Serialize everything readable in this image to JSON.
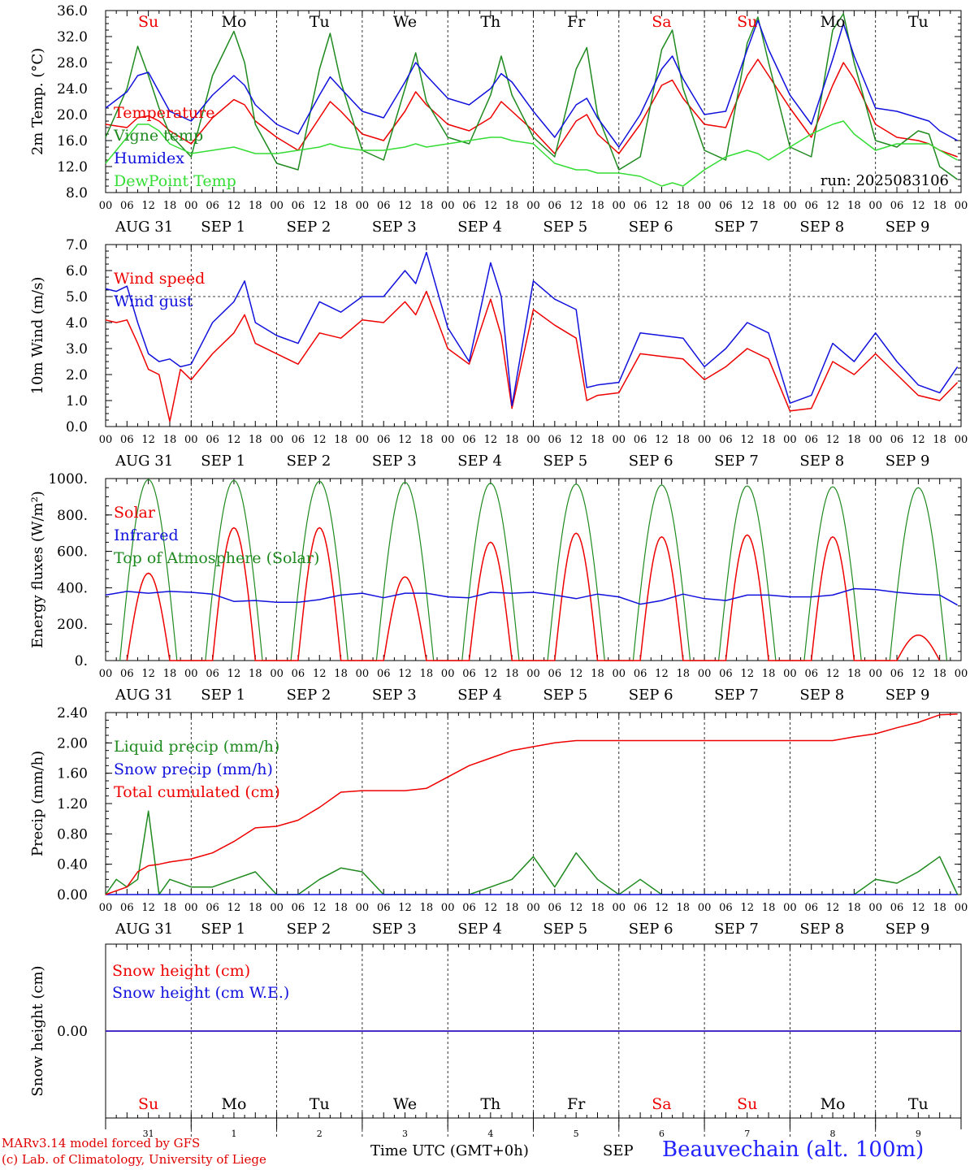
{
  "colors": {
    "red": "#ee0000",
    "green": "#1f8a1f",
    "lightgreen": "#33dd33",
    "blue": "#1111dd",
    "black": "#000000",
    "weekend": "#ee0000"
  },
  "day_names": [
    "Su",
    "Mo",
    "Tu",
    "We",
    "Th",
    "Fr",
    "Sa",
    "Su",
    "Mo",
    "Tu"
  ],
  "weekend_flags": [
    true,
    false,
    false,
    false,
    false,
    false,
    true,
    true,
    false,
    false
  ],
  "date_labels": [
    "AUG 31",
    "SEP  1",
    "SEP  2",
    "SEP  3",
    "SEP  4",
    "SEP  5",
    "SEP  6",
    "SEP  7",
    "SEP  8",
    "SEP  9"
  ],
  "hour_ticks": [
    "00",
    "06",
    "12",
    "18"
  ],
  "hour_end": "00",
  "bottom_day_numbers": [
    "31",
    "1",
    "2",
    "3",
    "4",
    "5",
    "6",
    "7",
    "8",
    "9"
  ],
  "footer": {
    "model": "MARv3.14 model forced by GFS",
    "copyright": "(c) Lab. of Climatology, University of Liege",
    "time_label": "Time UTC (GMT+0h)",
    "month": "SEP",
    "station": "Beauvechain (alt. 100m)"
  },
  "chart_data": [
    {
      "type": "line",
      "ylabel": "2m Temp. (°C)",
      "ylim": [
        8.0,
        36.0
      ],
      "yticks": [
        "8.0",
        "12.0",
        "16.0",
        "20.0",
        "24.0",
        "28.0",
        "32.0",
        "36.0"
      ],
      "annotation": "run: 2025083106",
      "x_hours": [
        0,
        6,
        9,
        12,
        15,
        18,
        24,
        30,
        36,
        39,
        42,
        48,
        54,
        60,
        63,
        66,
        72,
        78,
        84,
        87,
        90,
        96,
        102,
        108,
        111,
        114,
        120,
        126,
        132,
        135,
        138,
        144,
        150,
        156,
        159,
        162,
        168,
        174,
        180,
        183,
        186,
        192,
        198,
        204,
        207,
        210,
        216,
        222,
        228,
        231,
        234,
        239
      ],
      "series": [
        {
          "name": "Temperature",
          "color": "red",
          "values": [
            18.5,
            18.0,
            19.5,
            19.8,
            19.0,
            17.5,
            15.5,
            19.5,
            22.3,
            21.5,
            19.0,
            16.5,
            14.5,
            19.5,
            22.0,
            20.5,
            17.0,
            16.0,
            20.5,
            23.5,
            21.5,
            18.5,
            17.5,
            19.5,
            22.0,
            20.5,
            17.5,
            14.0,
            19.0,
            20.0,
            17.0,
            14.0,
            18.5,
            24.5,
            25.3,
            22.5,
            18.5,
            18.0,
            26.0,
            28.5,
            26.0,
            21.0,
            16.5,
            24.5,
            28.0,
            25.5,
            18.5,
            16.5,
            16.0,
            15.5,
            14.5,
            13.5
          ]
        },
        {
          "name": "Vigne temp",
          "color": "green",
          "values": [
            16.5,
            24.0,
            30.5,
            26.0,
            21.0,
            17.0,
            13.5,
            26.0,
            32.8,
            28.0,
            18.5,
            12.5,
            11.5,
            27.0,
            32.5,
            25.0,
            14.5,
            13.0,
            24.0,
            29.5,
            22.0,
            16.5,
            15.5,
            23.0,
            29.0,
            23.0,
            16.5,
            13.5,
            27.0,
            30.3,
            20.0,
            11.5,
            13.5,
            30.0,
            33.0,
            24.0,
            14.5,
            13.0,
            31.0,
            35.0,
            28.0,
            15.0,
            13.5,
            33.0,
            35.5,
            28.0,
            16.0,
            15.0,
            17.5,
            17.0,
            12.0,
            10.0
          ]
        },
        {
          "name": "Humidex",
          "color": "blue",
          "values": [
            21.0,
            23.5,
            26.0,
            26.5,
            23.5,
            20.5,
            19.0,
            23.0,
            26.0,
            24.5,
            21.5,
            18.5,
            17.0,
            23.0,
            25.8,
            24.0,
            20.5,
            19.5,
            25.0,
            28.0,
            26.0,
            22.5,
            21.5,
            24.0,
            26.3,
            25.0,
            20.5,
            16.5,
            21.5,
            22.5,
            19.5,
            15.0,
            20.0,
            27.0,
            29.0,
            25.5,
            20.0,
            20.5,
            30.0,
            34.5,
            30.0,
            23.0,
            18.5,
            28.5,
            34.0,
            29.0,
            21.0,
            20.5,
            19.5,
            19.0,
            17.5,
            16.0
          ]
        },
        {
          "name": "DewPoint Temp",
          "color": "lightgreen",
          "values": [
            12.5,
            16.5,
            18.5,
            18.5,
            17.5,
            15.5,
            14.0,
            14.5,
            15.0,
            14.5,
            14.0,
            14.0,
            14.5,
            15.0,
            15.5,
            15.0,
            14.5,
            14.5,
            15.0,
            15.5,
            15.0,
            15.5,
            16.0,
            16.5,
            16.5,
            16.0,
            15.5,
            12.5,
            11.5,
            11.5,
            11.0,
            11.0,
            10.5,
            9.0,
            9.5,
            9.0,
            11.5,
            13.5,
            14.5,
            14.0,
            13.0,
            15.0,
            17.0,
            18.5,
            19.0,
            17.0,
            14.5,
            15.5,
            15.5,
            15.5,
            14.5,
            13.0
          ]
        }
      ]
    },
    {
      "type": "line",
      "ylabel": "10m Wind (m/s)",
      "ylim": [
        0.0,
        7.0
      ],
      "yticks": [
        "0.0",
        "1.0",
        "2.0",
        "3.0",
        "4.0",
        "5.0",
        "6.0",
        "7.0"
      ],
      "ref_line": 5.0,
      "x_hours": [
        0,
        3,
        6,
        9,
        12,
        15,
        18,
        21,
        24,
        30,
        36,
        39,
        42,
        48,
        54,
        60,
        66,
        72,
        78,
        84,
        87,
        90,
        96,
        102,
        108,
        111,
        114,
        120,
        126,
        132,
        135,
        138,
        144,
        150,
        156,
        162,
        168,
        174,
        180,
        186,
        192,
        198,
        204,
        210,
        216,
        222,
        228,
        234,
        239
      ],
      "series": [
        {
          "name": "Wind speed",
          "color": "red",
          "values": [
            4.1,
            4.0,
            4.1,
            3.2,
            2.2,
            2.0,
            0.2,
            2.2,
            1.8,
            2.8,
            3.6,
            4.3,
            3.2,
            2.8,
            2.4,
            3.6,
            3.4,
            4.1,
            4.0,
            4.8,
            4.3,
            5.2,
            3.0,
            2.4,
            4.9,
            3.5,
            0.7,
            4.5,
            3.9,
            3.4,
            1.0,
            1.2,
            1.3,
            2.8,
            2.7,
            2.6,
            1.8,
            2.3,
            3.0,
            2.6,
            0.6,
            0.7,
            2.5,
            2.0,
            2.8,
            2.0,
            1.2,
            1.0,
            1.7
          ]
        },
        {
          "name": "Wind gust",
          "color": "blue",
          "values": [
            5.3,
            5.2,
            5.4,
            4.0,
            2.8,
            2.5,
            2.6,
            2.3,
            2.4,
            4.0,
            4.8,
            5.6,
            4.0,
            3.5,
            3.2,
            4.8,
            4.4,
            5.0,
            5.0,
            6.0,
            5.5,
            6.7,
            3.8,
            2.5,
            6.3,
            5.0,
            0.8,
            5.6,
            4.9,
            4.5,
            1.5,
            1.6,
            1.7,
            3.6,
            3.5,
            3.4,
            2.3,
            3.0,
            4.0,
            3.6,
            0.9,
            1.2,
            3.2,
            2.5,
            3.6,
            2.5,
            1.6,
            1.3,
            2.3
          ]
        }
      ]
    },
    {
      "type": "line",
      "ylabel": "Energy fluxes (W/m²)",
      "ylim": [
        0,
        1000
      ],
      "yticks": [
        "0.",
        "200.",
        "400.",
        "600.",
        "800.",
        "1000."
      ],
      "solar_peaks": [
        480,
        730,
        730,
        460,
        650,
        700,
        680,
        690,
        680,
        140
      ],
      "x_hours": [
        0,
        6,
        12,
        18,
        24,
        30,
        36,
        42,
        48,
        54,
        60,
        66,
        72,
        78,
        84,
        90,
        96,
        102,
        108,
        114,
        120,
        126,
        132,
        138,
        144,
        150,
        156,
        162,
        168,
        174,
        180,
        186,
        192,
        198,
        204,
        210,
        216,
        222,
        228,
        234,
        239
      ],
      "series": [
        {
          "name": "Solar",
          "color": "red"
        },
        {
          "name": "Infrared",
          "color": "blue",
          "values": [
            360,
            380,
            370,
            380,
            375,
            365,
            325,
            330,
            320,
            320,
            335,
            360,
            370,
            345,
            370,
            370,
            350,
            345,
            375,
            370,
            375,
            360,
            340,
            365,
            350,
            310,
            330,
            365,
            340,
            330,
            360,
            360,
            350,
            350,
            360,
            395,
            390,
            375,
            365,
            360,
            305
          ]
        },
        {
          "name": "Top of Atmosphere (Solar)",
          "color": "green"
        }
      ]
    },
    {
      "type": "line",
      "ylabel": "Precip (mm/h)",
      "ylim": [
        0.0,
        2.4
      ],
      "yticks": [
        "0.00",
        "0.40",
        "0.80",
        "1.20",
        "1.60",
        "2.00",
        "2.40"
      ],
      "x_hours": [
        0,
        3,
        6,
        9,
        12,
        15,
        18,
        24,
        30,
        36,
        42,
        48,
        54,
        60,
        66,
        72,
        78,
        84,
        90,
        96,
        102,
        108,
        114,
        120,
        126,
        132,
        138,
        144,
        150,
        156,
        162,
        168,
        174,
        180,
        186,
        192,
        198,
        204,
        210,
        216,
        222,
        228,
        234,
        239
      ],
      "series": [
        {
          "name": "Liquid precip (mm/h)",
          "color": "green",
          "values": [
            0.0,
            0.2,
            0.1,
            0.2,
            1.1,
            0.0,
            0.2,
            0.1,
            0.1,
            0.2,
            0.3,
            0.0,
            0.0,
            0.2,
            0.35,
            0.3,
            0.0,
            0.0,
            0.0,
            0.0,
            0.0,
            0.1,
            0.2,
            0.5,
            0.1,
            0.55,
            0.2,
            0.0,
            0.2,
            0.0,
            0.0,
            0.0,
            0.0,
            0.0,
            0.0,
            0.0,
            0.0,
            0.0,
            0.0,
            0.2,
            0.15,
            0.3,
            0.5,
            0.0
          ]
        },
        {
          "name": "Snow precip (mm/h)",
          "color": "blue",
          "values": [
            0,
            0,
            0,
            0,
            0,
            0,
            0,
            0,
            0,
            0,
            0,
            0,
            0,
            0,
            0,
            0,
            0,
            0,
            0,
            0,
            0,
            0,
            0,
            0,
            0,
            0,
            0,
            0,
            0,
            0,
            0,
            0,
            0,
            0,
            0,
            0,
            0,
            0,
            0,
            0,
            0,
            0,
            0,
            0
          ]
        },
        {
          "name": "Total cumulated (cm)",
          "color": "red",
          "values": [
            0.0,
            0.05,
            0.1,
            0.3,
            0.38,
            0.4,
            0.43,
            0.47,
            0.55,
            0.7,
            0.88,
            0.9,
            0.98,
            1.15,
            1.35,
            1.37,
            1.37,
            1.37,
            1.4,
            1.55,
            1.7,
            1.8,
            1.9,
            1.95,
            2.0,
            2.03,
            2.03,
            2.03,
            2.03,
            2.03,
            2.03,
            2.03,
            2.03,
            2.03,
            2.03,
            2.03,
            2.03,
            2.03,
            2.08,
            2.12,
            2.2,
            2.27,
            2.37,
            2.38
          ]
        }
      ]
    },
    {
      "type": "line",
      "ylabel": "Snow height (cm)",
      "ylim": [
        -1,
        1
      ],
      "yticks": [
        "0.00"
      ],
      "x_hours": [
        0,
        240
      ],
      "series": [
        {
          "name": "Snow height (cm)",
          "color": "red",
          "values": [
            0,
            0
          ]
        },
        {
          "name": "Snow height (cm W.E.)",
          "color": "blue",
          "values": [
            0,
            0
          ]
        }
      ]
    }
  ]
}
